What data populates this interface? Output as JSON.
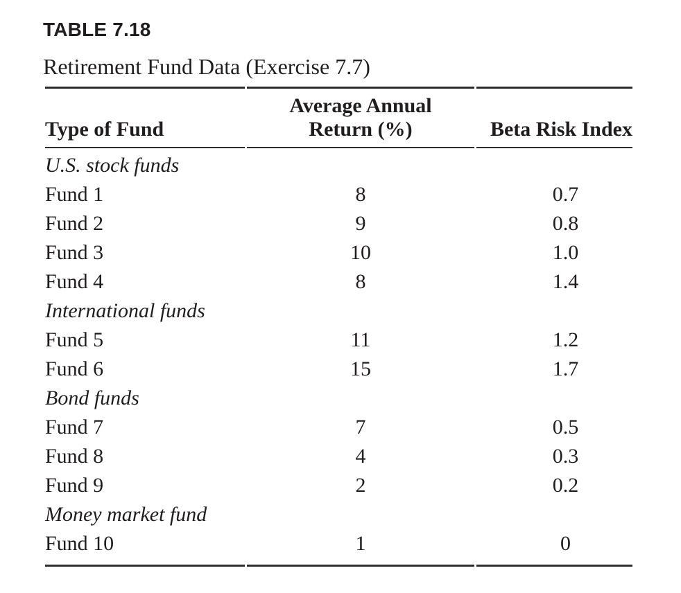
{
  "page": {
    "label": "TABLE 7.18",
    "title": "Retirement Fund Data (Exercise 7.7)"
  },
  "table": {
    "headers": {
      "fund_type": "Type of Fund",
      "avg_return_line1": "Average Annual",
      "avg_return_line2": "Return (%)",
      "beta": "Beta Risk Index"
    },
    "rows": [
      {
        "kind": "section",
        "label": "U.S. stock funds",
        "return": "",
        "beta": ""
      },
      {
        "kind": "fund",
        "label": "Fund 1",
        "return": "8",
        "beta": "0.7"
      },
      {
        "kind": "fund",
        "label": "Fund 2",
        "return": "9",
        "beta": "0.8"
      },
      {
        "kind": "fund",
        "label": "Fund 3",
        "return": "10",
        "beta": "1.0"
      },
      {
        "kind": "fund",
        "label": "Fund 4",
        "return": "8",
        "beta": "1.4"
      },
      {
        "kind": "section",
        "label": "International funds",
        "return": "",
        "beta": ""
      },
      {
        "kind": "fund",
        "label": "Fund 5",
        "return": "11",
        "beta": "1.2"
      },
      {
        "kind": "fund",
        "label": "Fund 6",
        "return": "15",
        "beta": "1.7"
      },
      {
        "kind": "section",
        "label": "Bond funds",
        "return": "",
        "beta": ""
      },
      {
        "kind": "fund",
        "label": "Fund 7",
        "return": "7",
        "beta": "0.5"
      },
      {
        "kind": "fund",
        "label": "Fund 8",
        "return": "4",
        "beta": "0.3"
      },
      {
        "kind": "fund",
        "label": "Fund 9",
        "return": "2",
        "beta": "0.2"
      },
      {
        "kind": "section",
        "label": "Money market fund",
        "return": "",
        "beta": ""
      },
      {
        "kind": "fund",
        "label": "Fund 10",
        "return": "1",
        "beta": "0"
      }
    ]
  },
  "chart_data": {
    "type": "table",
    "title": "Retirement Fund Data (Exercise 7.7)",
    "columns": [
      "Type of Fund",
      "Average Annual Return (%)",
      "Beta Risk Index"
    ],
    "groups": [
      {
        "category": "U.S. stock funds",
        "funds": [
          [
            "Fund 1",
            8,
            0.7
          ],
          [
            "Fund 2",
            9,
            0.8
          ],
          [
            "Fund 3",
            10,
            1.0
          ],
          [
            "Fund 4",
            8,
            1.4
          ]
        ]
      },
      {
        "category": "International funds",
        "funds": [
          [
            "Fund 5",
            11,
            1.2
          ],
          [
            "Fund 6",
            15,
            1.7
          ]
        ]
      },
      {
        "category": "Bond funds",
        "funds": [
          [
            "Fund 7",
            7,
            0.5
          ],
          [
            "Fund 8",
            4,
            0.3
          ],
          [
            "Fund 9",
            2,
            0.2
          ]
        ]
      },
      {
        "category": "Money market fund",
        "funds": [
          [
            "Fund 10",
            1,
            0
          ]
        ]
      }
    ]
  },
  "colors": {
    "text": "#201d1e",
    "rule": "#2e2b2c",
    "background": "#ffffff"
  }
}
